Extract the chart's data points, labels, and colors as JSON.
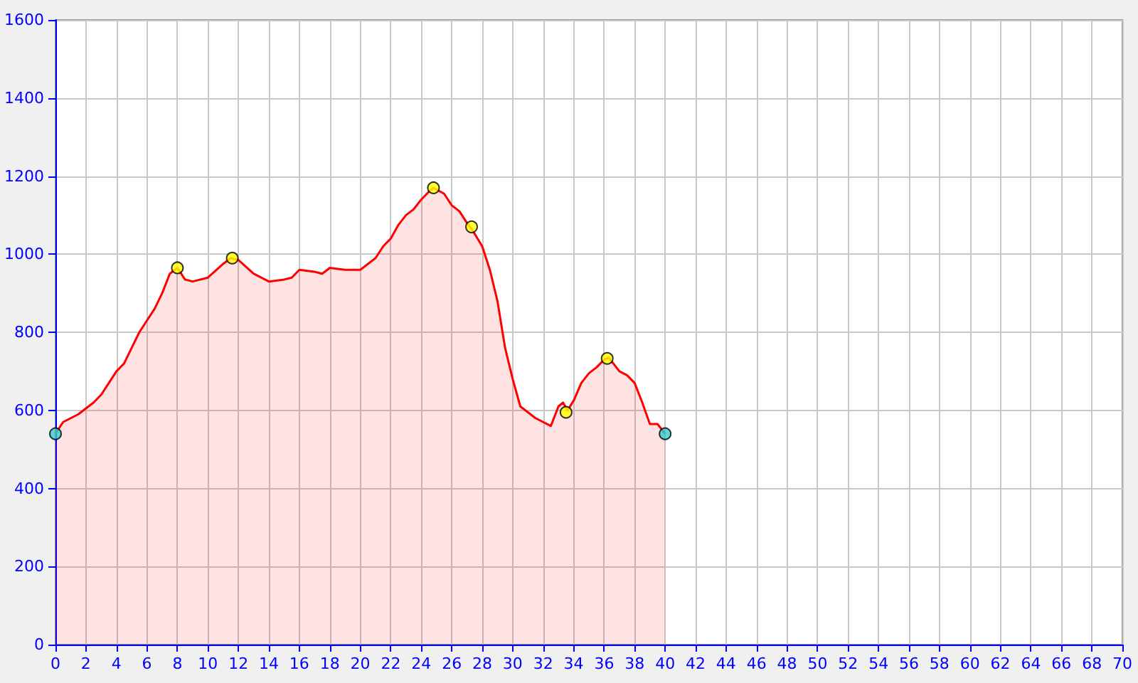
{
  "chart_data": {
    "type": "area",
    "xlim": [
      0,
      70
    ],
    "ylim": [
      0,
      1600
    ],
    "xticks": [
      0,
      2,
      4,
      6,
      8,
      10,
      12,
      14,
      16,
      18,
      20,
      22,
      24,
      26,
      28,
      30,
      32,
      34,
      36,
      38,
      40,
      42,
      44,
      46,
      48,
      50,
      52,
      54,
      56,
      58,
      60,
      62,
      64,
      66,
      68,
      70
    ],
    "yticks": [
      0,
      200,
      400,
      600,
      800,
      1000,
      1200,
      1400,
      1600
    ],
    "grid": true,
    "series": [
      {
        "color": "#ff0000",
        "marker": "none",
        "x": [
          0,
          0.5,
          1.5,
          2.5,
          3,
          3.5,
          4,
          4.5,
          5,
          5.5,
          6,
          6.5,
          7,
          7.5,
          8,
          8.5,
          9,
          10,
          11,
          11.5,
          12,
          13,
          14,
          15,
          15.5,
          16,
          17,
          17.5,
          18,
          19,
          20,
          21,
          21.5,
          22,
          22.5,
          23,
          23.5,
          24,
          24.5,
          24.8,
          25.5,
          26,
          26.5,
          27,
          27.3,
          28,
          28.5,
          29,
          29.5,
          30,
          30.5,
          31,
          31.5,
          32,
          32.5,
          33,
          33.3,
          33.6,
          34,
          34.5,
          35,
          35.5,
          36,
          36.3,
          37,
          37.5,
          38,
          38.5,
          39,
          39.5,
          40
        ],
        "values": [
          540,
          570,
          590,
          620,
          640,
          670,
          700,
          720,
          760,
          800,
          830,
          860,
          900,
          950,
          965,
          935,
          930,
          940,
          975,
          990,
          985,
          950,
          930,
          935,
          940,
          960,
          955,
          950,
          965,
          960,
          960,
          990,
          1020,
          1040,
          1075,
          1100,
          1115,
          1140,
          1160,
          1170,
          1155,
          1125,
          1110,
          1080,
          1065,
          1020,
          960,
          880,
          760,
          680,
          610,
          595,
          580,
          570,
          560,
          610,
          620,
          600,
          625,
          670,
          695,
          710,
          730,
          735,
          700,
          690,
          670,
          620,
          565,
          565,
          540
        ]
      },
      {
        "type": "scatter",
        "marker": "circle",
        "x": [
          0,
          8,
          11.6,
          24.8,
          27.3,
          33.5,
          36.2,
          40
        ],
        "values": [
          540,
          965,
          990,
          1170,
          1070,
          595,
          733,
          540
        ],
        "colors": [
          "#33cccc",
          "#ffff00",
          "#ffff00",
          "#ffff00",
          "#ffff00",
          "#ffff00",
          "#ffff00",
          "#33cccc"
        ]
      }
    ]
  }
}
